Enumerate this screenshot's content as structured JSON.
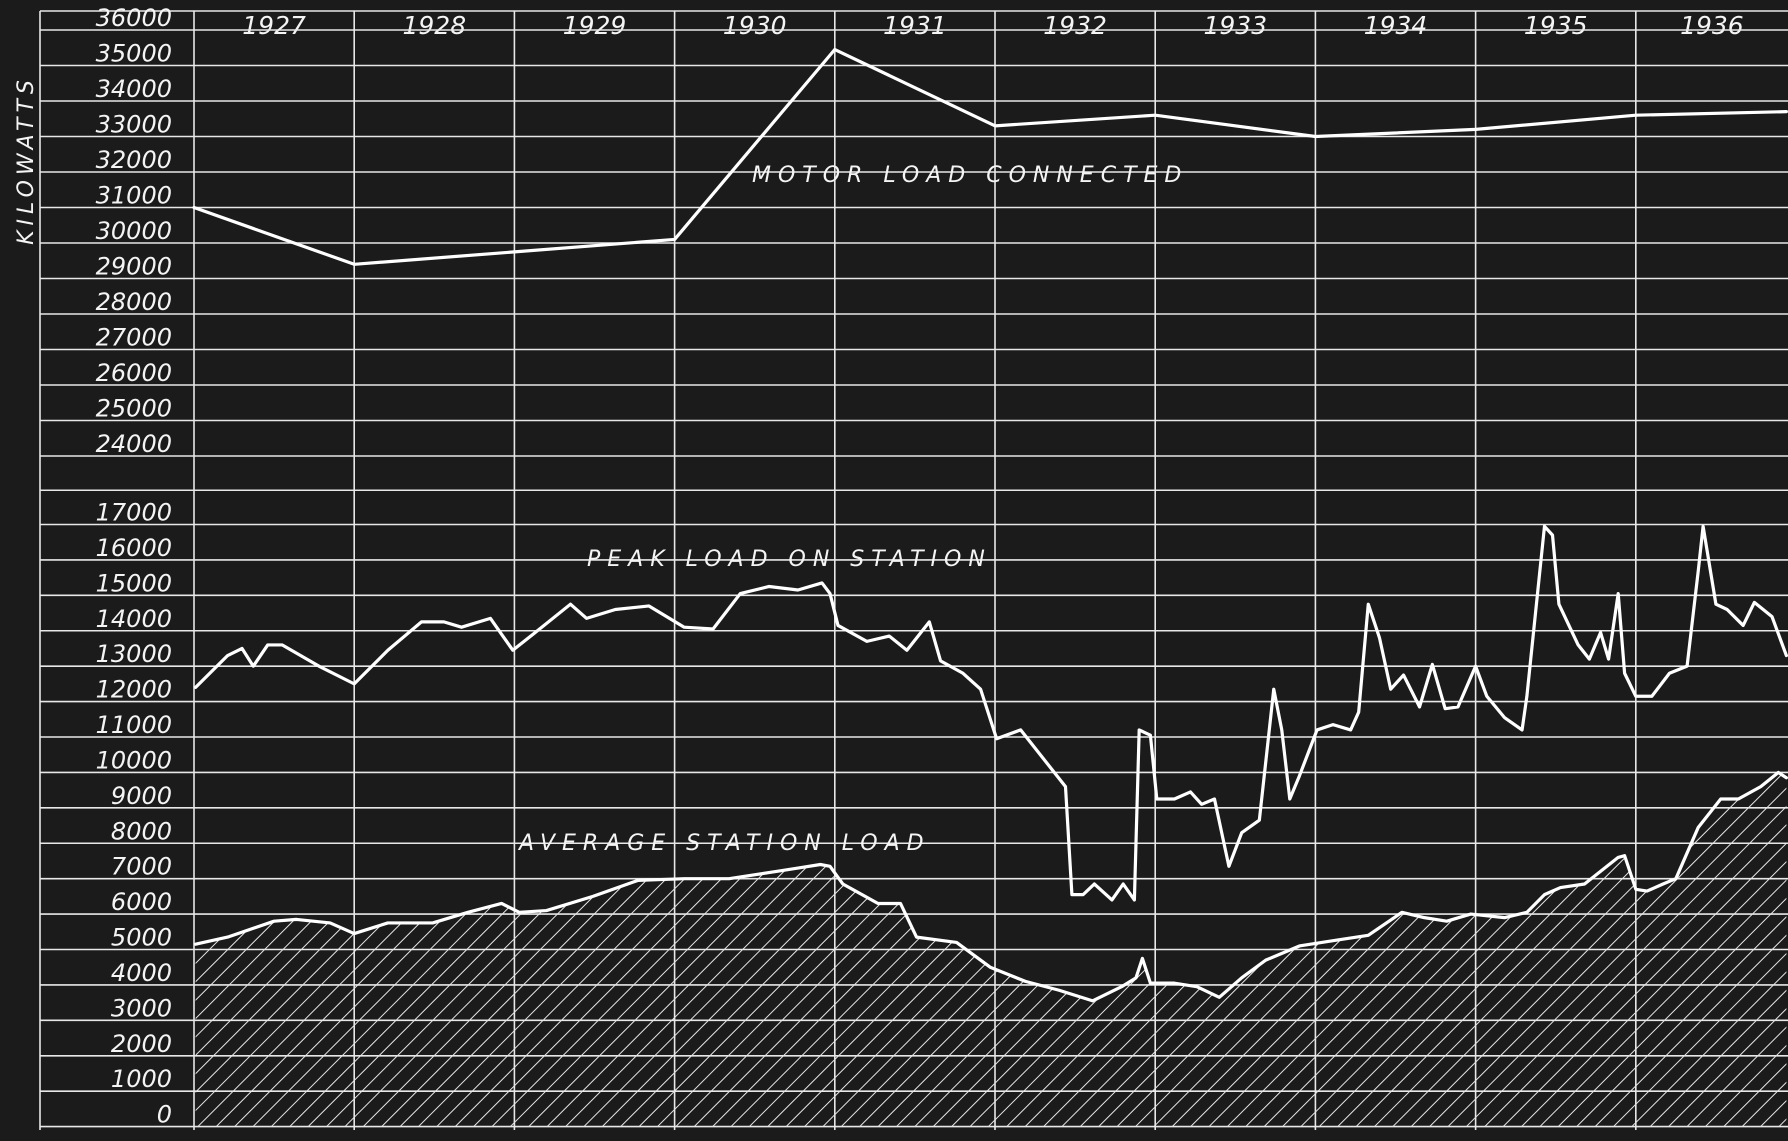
{
  "chart_data": [
    {
      "type": "line",
      "ylabel": "KILOWATTS",
      "categories": [
        "1927",
        "1928",
        "1929",
        "1930",
        "1931",
        "1932",
        "1933",
        "1934",
        "1935",
        "1936"
      ],
      "xlim": [
        1927,
        1936.95
      ],
      "ylim": [
        24000,
        36000
      ],
      "yticks": [
        24000,
        25000,
        26000,
        27000,
        28000,
        29000,
        30000,
        31000,
        32000,
        33000,
        34000,
        35000,
        36000
      ],
      "grid": true,
      "series": [
        {
          "name": "MOTOR LOAD CONNECTED",
          "color": "#ffffff",
          "x": [
            1927,
            1928,
            1929,
            1930,
            1931,
            1932,
            1933,
            1934,
            1935,
            1936,
            1936.94
          ],
          "values": [
            31000,
            29400,
            29750,
            30100,
            35450,
            33300,
            33600,
            33000,
            33200,
            33600,
            33700
          ]
        }
      ]
    },
    {
      "type": "line",
      "xlim": [
        1927,
        1936.95
      ],
      "ylim": [
        0,
        17000
      ],
      "yticks": [
        0,
        1000,
        2000,
        3000,
        4000,
        5000,
        6000,
        7000,
        8000,
        9000,
        10000,
        11000,
        12000,
        13000,
        14000,
        15000,
        16000,
        17000
      ],
      "grid": true,
      "series": [
        {
          "name": "PEAK LOAD ON STATION",
          "color": "#ffffff",
          "hatched": false,
          "x": [
            1927.01,
            1927.21,
            1927.3,
            1927.37,
            1927.46,
            1927.55,
            1927.78,
            1928.0,
            1928.21,
            1928.42,
            1928.56,
            1928.67,
            1928.85,
            1928.99,
            1929.13,
            1929.35,
            1929.45,
            1929.63,
            1929.84,
            1930.06,
            1930.24,
            1930.41,
            1930.59,
            1930.77,
            1930.92,
            1930.97,
            1931.02,
            1931.2,
            1931.34,
            1931.45,
            1931.59,
            1931.66,
            1931.8,
            1931.91,
            1932.01,
            1932.16,
            1932.3,
            1932.44,
            1932.48,
            1932.55,
            1932.62,
            1932.73,
            1932.8,
            1932.87,
            1932.9,
            1932.97,
            1933.01,
            1933.12,
            1933.22,
            1933.29,
            1933.37,
            1933.46,
            1933.54,
            1933.65,
            1933.74,
            1933.79,
            1933.84,
            1933.9,
            1934.01,
            1934.11,
            1934.22,
            1934.27,
            1934.33,
            1934.4,
            1934.47,
            1934.55,
            1934.65,
            1934.73,
            1934.81,
            1934.89,
            1935.0,
            1935.07,
            1935.18,
            1935.29,
            1935.32,
            1935.43,
            1935.48,
            1935.52,
            1935.64,
            1935.71,
            1935.78,
            1935.83,
            1935.89,
            1935.93,
            1936.0,
            1936.1,
            1936.21,
            1936.32,
            1936.39,
            1936.42,
            1936.5,
            1936.57,
            1936.67,
            1936.74,
            1936.85,
            1936.94
          ],
          "values": [
            12400,
            13300,
            13500,
            13000,
            13600,
            13600,
            13000,
            12500,
            13450,
            14250,
            14250,
            14100,
            14350,
            13450,
            13950,
            14750,
            14350,
            14600,
            14700,
            14100,
            14050,
            15050,
            15250,
            15150,
            15350,
            15050,
            14150,
            13700,
            13850,
            13450,
            14250,
            13150,
            12800,
            12350,
            10950,
            11200,
            10400,
            9600,
            6550,
            6550,
            6850,
            6400,
            6850,
            6400,
            11200,
            11050,
            9250,
            9250,
            9450,
            9100,
            9250,
            7350,
            8300,
            8650,
            12350,
            11200,
            9250,
            9900,
            11200,
            11350,
            11200,
            11700,
            14750,
            13800,
            12350,
            12750,
            11850,
            13050,
            11800,
            11850,
            13000,
            12150,
            11550,
            11200,
            12150,
            16950,
            16700,
            14750,
            13600,
            13200,
            13950,
            13200,
            15050,
            12800,
            12150,
            12150,
            12800,
            13000,
            15700,
            16950,
            14750,
            14600,
            14150,
            14800,
            14400,
            13300
          ]
        },
        {
          "name": "AVERAGE STATION LOAD",
          "color": "#ffffff",
          "hatched": true,
          "x": [
            1927.01,
            1927.21,
            1927.5,
            1927.64,
            1927.85,
            1928.0,
            1928.21,
            1928.49,
            1928.71,
            1928.92,
            1929.03,
            1929.2,
            1929.49,
            1929.77,
            1930.06,
            1930.34,
            1930.63,
            1930.77,
            1930.91,
            1930.97,
            1931.05,
            1931.27,
            1931.41,
            1931.51,
            1931.76,
            1931.97,
            1932.19,
            1932.4,
            1932.61,
            1932.79,
            1932.88,
            1932.92,
            1932.97,
            1933.12,
            1933.26,
            1933.4,
            1933.54,
            1933.69,
            1933.9,
            1934.11,
            1934.33,
            1934.54,
            1934.68,
            1934.82,
            1934.97,
            1935.18,
            1935.32,
            1935.43,
            1935.53,
            1935.68,
            1935.82,
            1935.89,
            1935.93,
            1936.0,
            1936.07,
            1936.17,
            1936.25,
            1936.39,
            1936.53,
            1936.64,
            1936.78,
            1936.89,
            1936.94
          ],
          "values": [
            5150,
            5350,
            5800,
            5850,
            5750,
            5450,
            5750,
            5750,
            6050,
            6300,
            6050,
            6100,
            6500,
            6950,
            7000,
            7000,
            7200,
            7300,
            7400,
            7350,
            6850,
            6300,
            6300,
            5350,
            5200,
            4500,
            4100,
            3850,
            3550,
            3950,
            4200,
            4750,
            4050,
            4050,
            3950,
            3650,
            4200,
            4700,
            5100,
            5250,
            5400,
            6050,
            5900,
            5800,
            6000,
            5900,
            6050,
            6550,
            6750,
            6850,
            7350,
            7600,
            7650,
            6700,
            6650,
            6850,
            7000,
            8450,
            9250,
            9250,
            9600,
            10000,
            9850
          ]
        }
      ]
    }
  ]
}
